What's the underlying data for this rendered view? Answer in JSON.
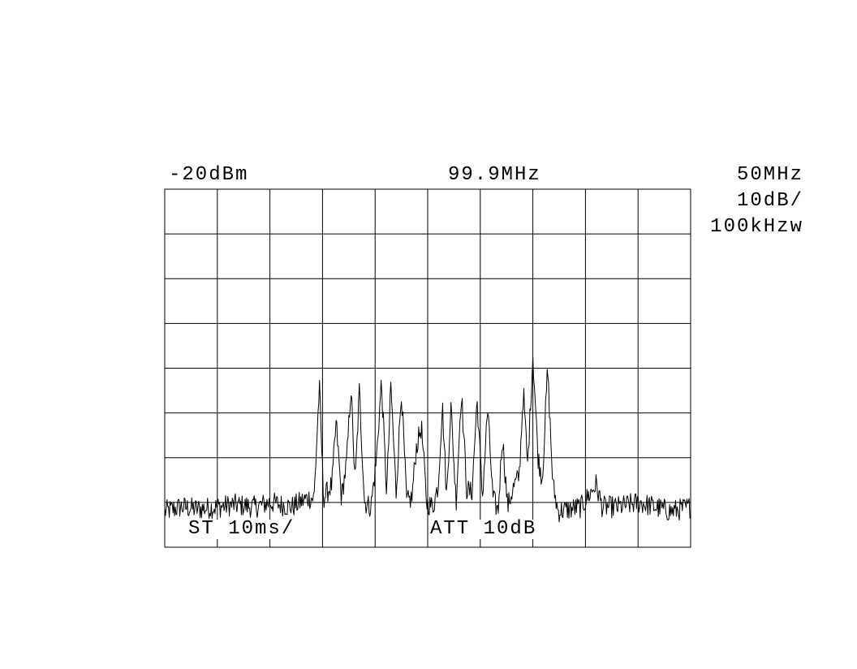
{
  "header": {
    "ref_level": "-20dBm",
    "center_freq": "99.9MHz",
    "span": "50MHz",
    "scale": "10dB/",
    "rbw": "100kHzw"
  },
  "footer": {
    "sweep_time": "ST 10ms/",
    "attenuation": "ATT 10dB"
  },
  "chart_data": {
    "type": "line",
    "title": "",
    "xlabel": "",
    "ylabel": "",
    "grid": true,
    "x_divisions": 10,
    "y_divisions": 8,
    "reference_level_dbm": -20,
    "db_per_division": 10,
    "center_frequency_mhz": 99.9,
    "span_mhz": 50,
    "xlim_mhz": [
      74.9,
      124.9
    ],
    "ylim_dbm": [
      -100,
      -20
    ],
    "colors": {
      "trace": "#000000",
      "grid": "#000000",
      "background": "#ffffff"
    },
    "series": [
      {
        "values_dbm": [
          [
            74.9,
            -92
          ],
          [
            76.5,
            -91
          ],
          [
            78.0,
            -91.5
          ],
          [
            79.9,
            -91
          ],
          [
            81.5,
            -90.5
          ],
          [
            83.5,
            -91
          ],
          [
            84.9,
            -90
          ],
          [
            87.0,
            -91
          ],
          [
            88.5,
            -89
          ],
          [
            89.1,
            -89
          ],
          [
            89.6,
            -64
          ],
          [
            90.0,
            -89
          ],
          [
            90.8,
            -86
          ],
          [
            91.2,
            -72
          ],
          [
            91.7,
            -89
          ],
          [
            92.2,
            -81
          ],
          [
            92.6,
            -64
          ],
          [
            93.0,
            -86
          ],
          [
            93.4,
            -65
          ],
          [
            93.9,
            -90
          ],
          [
            94.5,
            -91
          ],
          [
            95.0,
            -81
          ],
          [
            95.5,
            -63
          ],
          [
            96.0,
            -88
          ],
          [
            96.4,
            -64
          ],
          [
            96.9,
            -88
          ],
          [
            97.4,
            -65
          ],
          [
            97.9,
            -90
          ],
          [
            98.4,
            -89
          ],
          [
            98.8,
            -78
          ],
          [
            99.3,
            -73
          ],
          [
            99.8,
            -90
          ],
          [
            100.4,
            -91
          ],
          [
            100.9,
            -86
          ],
          [
            101.3,
            -68
          ],
          [
            101.7,
            -89
          ],
          [
            102.1,
            -68
          ],
          [
            102.6,
            -90
          ],
          [
            103.1,
            -65
          ],
          [
            103.6,
            -87
          ],
          [
            104.1,
            -88
          ],
          [
            104.6,
            -67
          ],
          [
            105.1,
            -89
          ],
          [
            105.6,
            -69
          ],
          [
            106.1,
            -89
          ],
          [
            106.6,
            -92
          ],
          [
            107.0,
            -75
          ],
          [
            107.5,
            -91
          ],
          [
            108.0,
            -87
          ],
          [
            108.6,
            -84
          ],
          [
            109.0,
            -65
          ],
          [
            109.4,
            -82
          ],
          [
            109.9,
            -57
          ],
          [
            110.4,
            -80
          ],
          [
            110.8,
            -85
          ],
          [
            111.3,
            -60
          ],
          [
            111.8,
            -86
          ],
          [
            112.3,
            -92
          ],
          [
            114.5,
            -91
          ],
          [
            115.9,
            -86
          ],
          [
            116.5,
            -91
          ],
          [
            118.0,
            -91
          ],
          [
            120.0,
            -90
          ],
          [
            121.5,
            -91
          ],
          [
            123.0,
            -92
          ],
          [
            124.9,
            -91
          ]
        ]
      }
    ]
  }
}
